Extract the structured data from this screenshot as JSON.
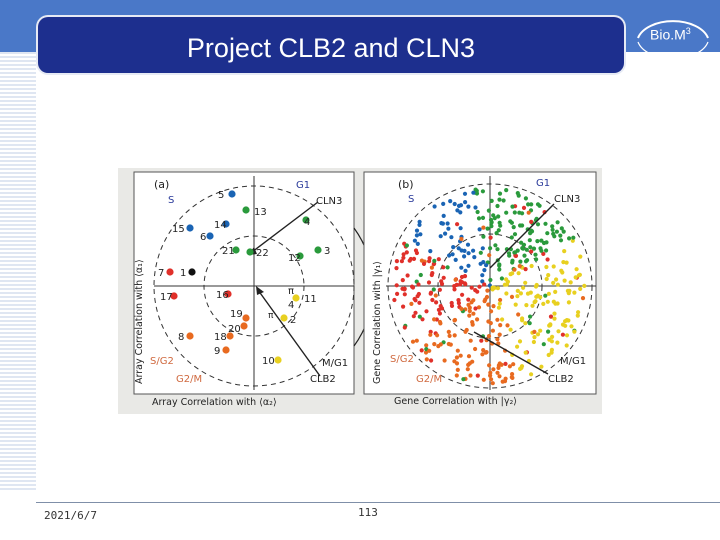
{
  "slide": {
    "title": "Project CLB2 and CLN3",
    "logo": {
      "text": "Bio.M",
      "superscript": "3"
    },
    "footer": {
      "date": "2021/6/7",
      "page": "113"
    }
  },
  "figure": {
    "panel_a": {
      "label": "(a)",
      "ylabel": "Array Correlation with ⟨α₁⟩",
      "xlabel": "Array Correlation with ⟨α₂⟩",
      "regions": {
        "g1": "G1",
        "s": "S",
        "s_g2": "S/G2",
        "g2_m": "G2/M",
        "m_g1": "M/G1",
        "cln3": "CLN3",
        "clb2": "CLB2"
      },
      "angle_label_top": "π",
      "angle_label_den": "4",
      "angle_label_mid": "π",
      "points": [
        {
          "n": "5",
          "color": "#1a64b4"
        },
        {
          "n": "13",
          "color": "#2a9a3c"
        },
        {
          "n": "4",
          "color": "#2a9a3c"
        },
        {
          "n": "14",
          "color": "#1a64b4"
        },
        {
          "n": "15",
          "color": "#1a64b4"
        },
        {
          "n": "6",
          "color": "#1a64b4"
        },
        {
          "n": "21",
          "color": "#2a9a3c"
        },
        {
          "n": "22",
          "color": "#2a9a3c"
        },
        {
          "n": "12",
          "color": "#2a9a3c"
        },
        {
          "n": "3",
          "color": "#2a9a3c"
        },
        {
          "n": "7",
          "color": "#e0302a"
        },
        {
          "n": "1",
          "color": "#111111"
        },
        {
          "n": "17",
          "color": "#e0302a"
        },
        {
          "n": "16",
          "color": "#e0302a"
        },
        {
          "n": "11",
          "color": "#e8d020"
        },
        {
          "n": "19",
          "color": "#e86a20"
        },
        {
          "n": "20",
          "color": "#e86a20"
        },
        {
          "n": "2",
          "color": "#e8d020"
        },
        {
          "n": "8",
          "color": "#e86a20"
        },
        {
          "n": "18",
          "color": "#e86a20"
        },
        {
          "n": "9",
          "color": "#e86a20"
        },
        {
          "n": "10",
          "color": "#e8d020"
        }
      ]
    },
    "panel_b": {
      "label": "(b)",
      "ylabel": "Gene Correlation with |γ₁⟩",
      "xlabel": "Gene Correlation with |γ₂⟩",
      "regions": {
        "g1": "G1",
        "s": "S",
        "s_g2": "S/G2",
        "g2_m": "G2/M",
        "m_g1": "M/G1",
        "cln3": "CLN3",
        "clb2": "CLB2"
      }
    },
    "colors": {
      "green": "#2a9a3c",
      "blue": "#1a64b4",
      "red": "#e0302a",
      "orange": "#e86a20",
      "yellow": "#e8d020",
      "label_blue": "#2a3a9a",
      "label_orange": "#d06a40"
    }
  }
}
